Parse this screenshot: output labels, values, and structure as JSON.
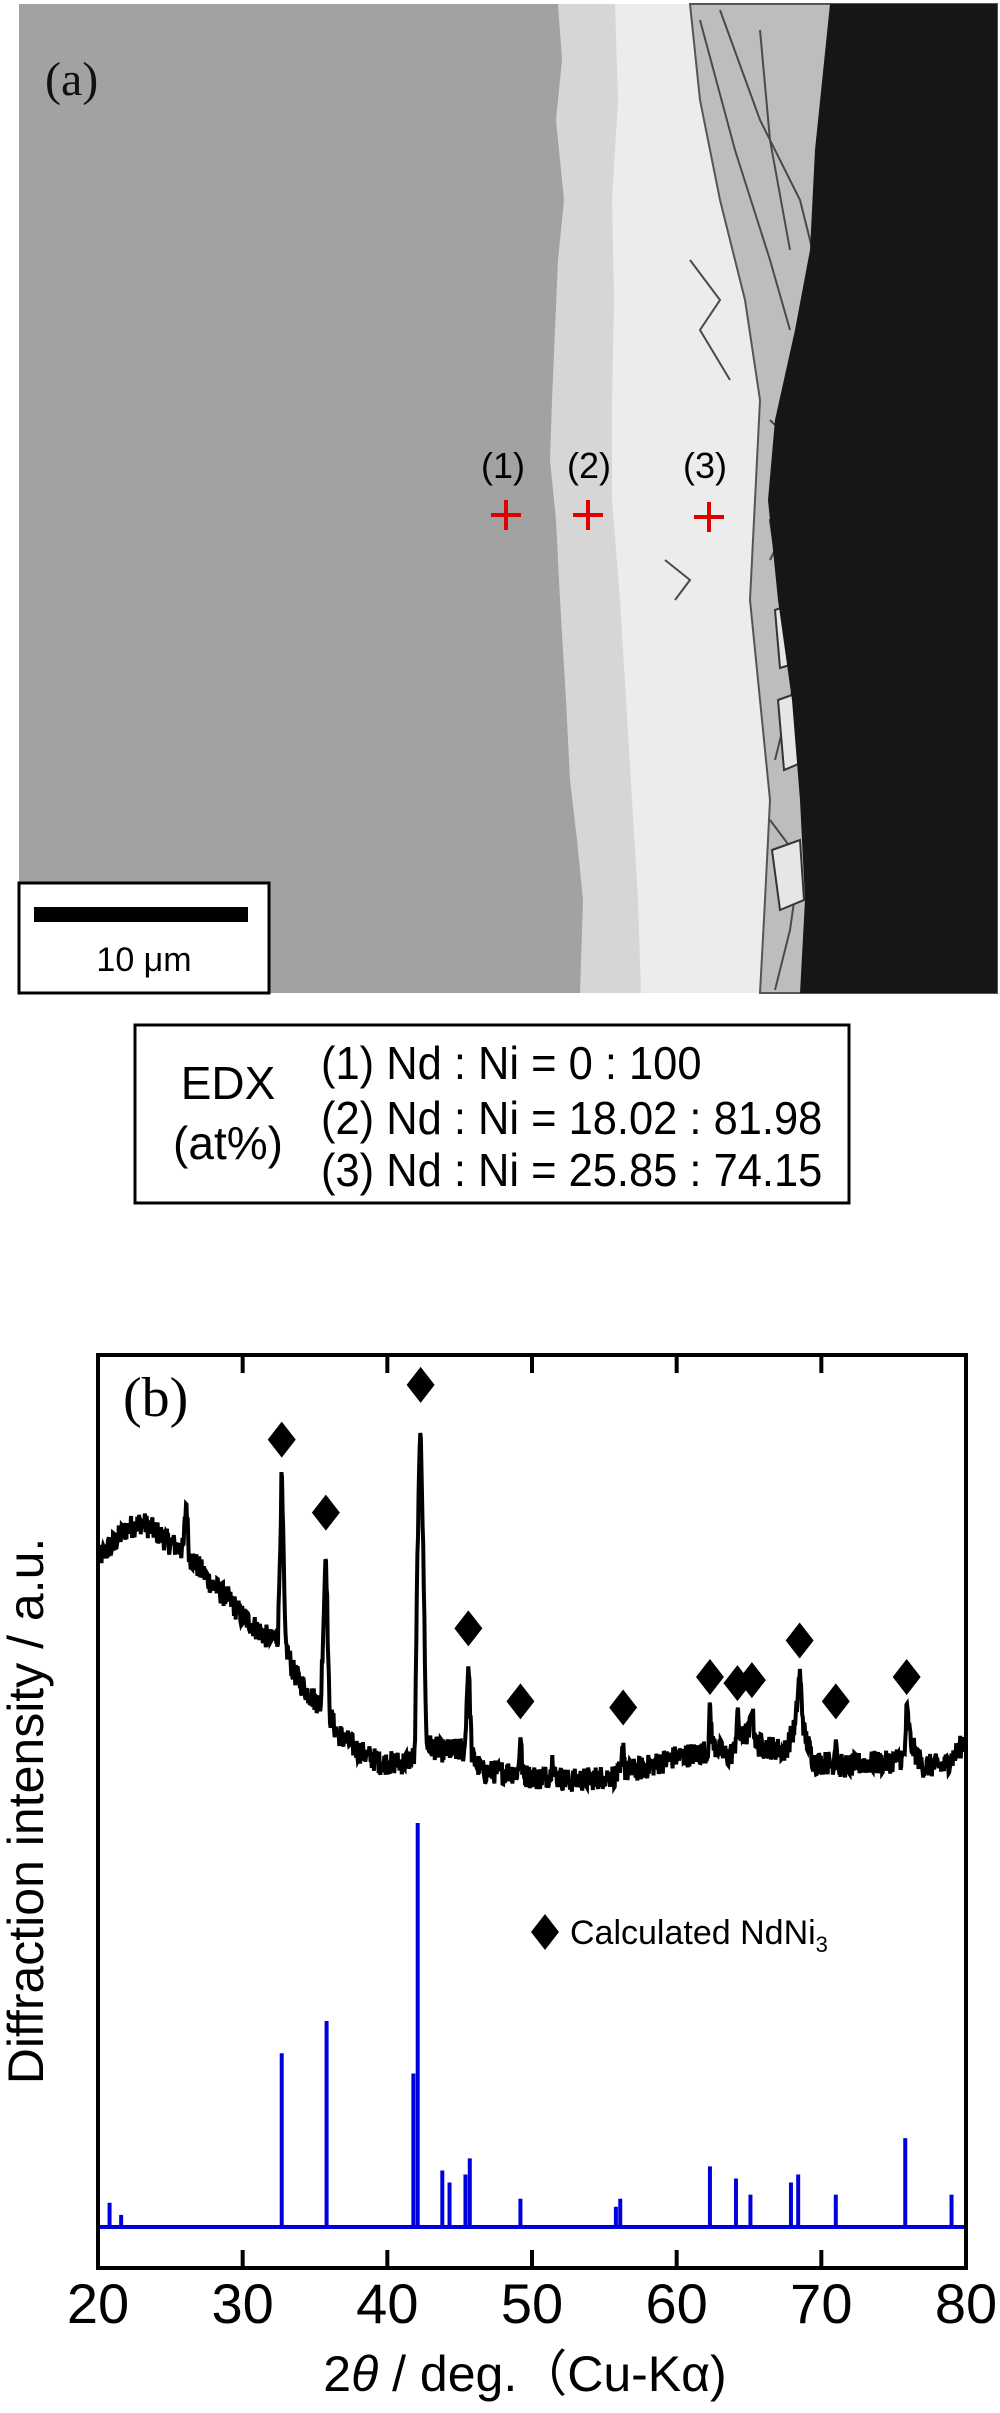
{
  "panel_a": {
    "label": "(a)",
    "points": [
      {
        "label": "(1)"
      },
      {
        "label": "(2)"
      },
      {
        "label": "(3)"
      }
    ],
    "marker_symbol": "plus",
    "marker_color": "#e00000",
    "scale_bar": {
      "label": "10 μm"
    }
  },
  "edx": {
    "title": "EDX",
    "unit": "(at%)",
    "lines": [
      "(1) Nd : Ni = 0 : 100",
      "(2) Nd : Ni = 18.02 : 81.98",
      "(3) Nd : Ni = 25.85 : 74.15"
    ]
  },
  "chart_data": {
    "type": "line",
    "panel_label": "(b)",
    "xlabel": "2θ / deg.（Cu-Kα)",
    "ylabel": "Diffraction intensity / a.u.",
    "xlim": [
      20,
      80
    ],
    "xticks": [
      20,
      30,
      40,
      50,
      60,
      70,
      80
    ],
    "ylim": [
      0,
      300
    ],
    "yticks": [],
    "grid": false,
    "legend": {
      "marker": "diamond",
      "text": "Calculated NdNi",
      "subscript": "3",
      "placement": "center-right"
    },
    "series": [
      {
        "kind": "measured",
        "color": "#000000",
        "points": [
          [
            20,
            233
          ],
          [
            21,
            238
          ],
          [
            22,
            243
          ],
          [
            23,
            245
          ],
          [
            24,
            242
          ],
          [
            25,
            238
          ],
          [
            25.9,
            236
          ],
          [
            26.1,
            253
          ],
          [
            26.3,
            234
          ],
          [
            27,
            230
          ],
          [
            28,
            224
          ],
          [
            29,
            220
          ],
          [
            30,
            214
          ],
          [
            31,
            210
          ],
          [
            32,
            206
          ],
          [
            32.45,
            208
          ],
          [
            32.7,
            262
          ],
          [
            32.95,
            205
          ],
          [
            33.5,
            196
          ],
          [
            34.5,
            189
          ],
          [
            35.4,
            185
          ],
          [
            35.75,
            238
          ],
          [
            36.0,
            182
          ],
          [
            36.5,
            176
          ],
          [
            38,
            170
          ],
          [
            39.5,
            166
          ],
          [
            41,
            166
          ],
          [
            41.9,
            168
          ],
          [
            42.1,
            240
          ],
          [
            42.3,
            280
          ],
          [
            42.5,
            230
          ],
          [
            42.7,
            172
          ],
          [
            43.7,
            170
          ],
          [
            45.35,
            170
          ],
          [
            45.6,
            200
          ],
          [
            45.85,
            168
          ],
          [
            46.6,
            163
          ],
          [
            48,
            163
          ],
          [
            49.05,
            163
          ],
          [
            49.2,
            176
          ],
          [
            49.35,
            162
          ],
          [
            50.5,
            161
          ],
          [
            51.3,
            162
          ],
          [
            51.4,
            172
          ],
          [
            51.5,
            162
          ],
          [
            52.5,
            160
          ],
          [
            54.4,
            161
          ],
          [
            56.15,
            162
          ],
          [
            56.3,
            174
          ],
          [
            56.45,
            163
          ],
          [
            57.5,
            164
          ],
          [
            58.8,
            166
          ],
          [
            60,
            168
          ],
          [
            61.5,
            169
          ],
          [
            62.15,
            170
          ],
          [
            62.3,
            184
          ],
          [
            62.5,
            172
          ],
          [
            63.5,
            168
          ],
          [
            64.0,
            170
          ],
          [
            64.2,
            182
          ],
          [
            64.4,
            174
          ],
          [
            65.0,
            176
          ],
          [
            65.2,
            183
          ],
          [
            65.5,
            172
          ],
          [
            66.5,
            171
          ],
          [
            67.5,
            170
          ],
          [
            68.2,
            178
          ],
          [
            68.5,
            196
          ],
          [
            68.8,
            176
          ],
          [
            69.5,
            166
          ],
          [
            70.85,
            166
          ],
          [
            71.0,
            176
          ],
          [
            71.15,
            165
          ],
          [
            72,
            165
          ],
          [
            73,
            166
          ],
          [
            74.5,
            166
          ],
          [
            75.75,
            168
          ],
          [
            75.9,
            184
          ],
          [
            76.2,
            172
          ],
          [
            77,
            165
          ],
          [
            78.5,
            165
          ],
          [
            79.5,
            170
          ],
          [
            80,
            175
          ]
        ]
      },
      {
        "kind": "calculated-sticks",
        "color": "#0000dd",
        "intensity_scale": "relative, max 100",
        "peaks": [
          [
            20.8,
            6
          ],
          [
            21.6,
            3
          ],
          [
            32.7,
            43
          ],
          [
            35.8,
            51
          ],
          [
            41.8,
            38
          ],
          [
            42.1,
            100
          ],
          [
            43.8,
            14
          ],
          [
            44.3,
            11
          ],
          [
            45.4,
            13
          ],
          [
            45.7,
            17
          ],
          [
            49.2,
            7
          ],
          [
            55.8,
            5
          ],
          [
            56.1,
            7
          ],
          [
            62.3,
            15
          ],
          [
            64.1,
            12
          ],
          [
            65.1,
            8
          ],
          [
            67.9,
            11
          ],
          [
            68.4,
            13
          ],
          [
            71.0,
            8
          ],
          [
            75.8,
            22
          ],
          [
            79.0,
            8
          ]
        ]
      }
    ],
    "markers": {
      "symbol": "diamond",
      "color": "#000000",
      "positions": [
        32.7,
        35.75,
        42.3,
        45.6,
        49.2,
        56.3,
        62.3,
        64.2,
        65.2,
        68.5,
        71.0,
        75.9
      ]
    }
  }
}
